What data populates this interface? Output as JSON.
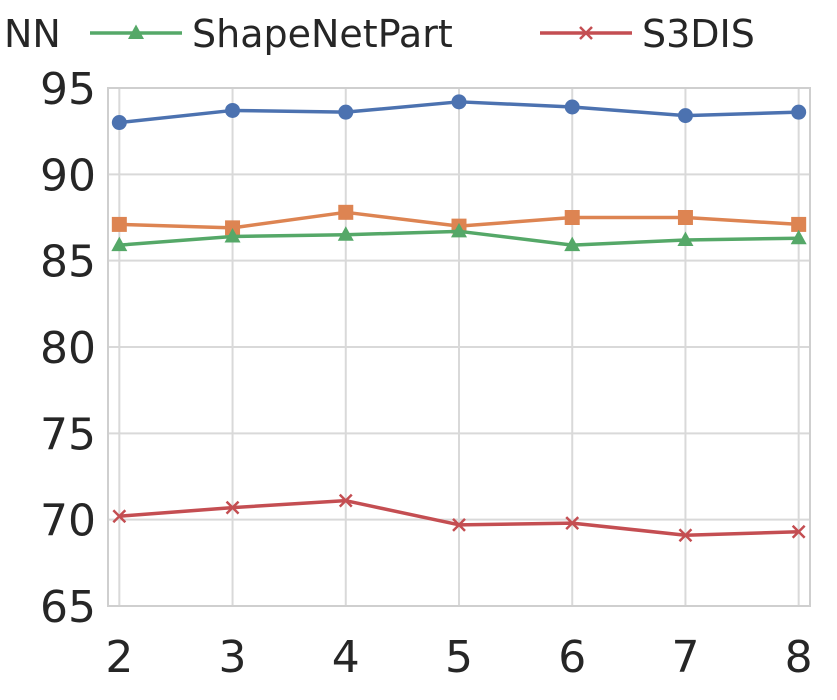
{
  "chart_data": {
    "type": "line",
    "title": "",
    "xlabel": "",
    "ylabel": "",
    "x": [
      2,
      3,
      4,
      5,
      6,
      7,
      8
    ],
    "xlim": [
      1.9,
      8.1
    ],
    "ylim": [
      65,
      95
    ],
    "xticks": [
      "2",
      "3",
      "4",
      "5",
      "6",
      "7",
      "8"
    ],
    "yticks": [
      "65",
      "70",
      "75",
      "80",
      "85",
      "90",
      "95"
    ],
    "grid": true,
    "legend_placement": "top",
    "legend_visible": [
      {
        "label": "NN",
        "partial": true
      },
      {
        "label": "ShapeNetPart",
        "series_index": 2
      },
      {
        "label": "S3DIS",
        "series_index": 3
      }
    ],
    "series": [
      {
        "values": [
          93.0,
          93.7,
          93.6,
          94.2,
          93.9,
          93.4,
          93.6
        ],
        "color": "#4c72b0",
        "marker": "circle"
      },
      {
        "values": [
          87.1,
          86.9,
          87.8,
          87.0,
          87.5,
          87.5,
          87.1
        ],
        "color": "#dd8452",
        "marker": "square"
      },
      {
        "name": "ShapeNetPart",
        "values": [
          85.9,
          86.4,
          86.5,
          86.7,
          85.9,
          86.2,
          86.3
        ],
        "color": "#55a868",
        "marker": "triangle"
      },
      {
        "name": "S3DIS",
        "values": [
          70.2,
          70.7,
          71.1,
          69.7,
          69.8,
          69.1,
          69.3
        ],
        "color": "#c44e52",
        "marker": "x"
      }
    ]
  }
}
